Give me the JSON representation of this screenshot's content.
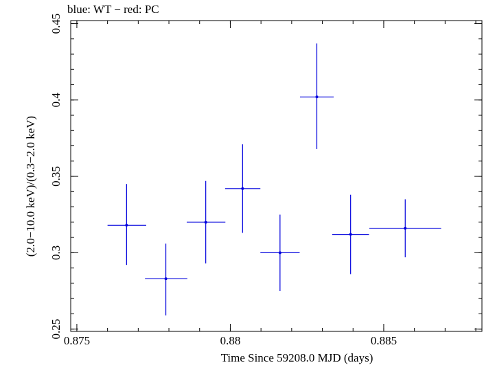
{
  "chart_data": {
    "type": "scatter",
    "title": "blue: WT − red: PC",
    "xlabel": "Time Since 59208.0 MJD (days)",
    "ylabel": "(2.0−10.0 keV)/(0.3−2.0 keV)",
    "xlim": [
      0.8748,
      0.8882
    ],
    "ylim": [
      0.2485,
      0.452
    ],
    "x_ticks": [
      0.875,
      0.88,
      0.885
    ],
    "x_tick_labels": [
      "0.875",
      "0.88",
      "0.885"
    ],
    "y_ticks": [
      0.25,
      0.3,
      0.35,
      0.4,
      0.45
    ],
    "y_tick_labels": [
      "0.25",
      "0.3",
      "0.35",
      "0.4",
      "0.45"
    ],
    "grid": false,
    "series": [
      {
        "name": "WT",
        "color": "#0000dd",
        "points": [
          {
            "x": 0.87662,
            "y": 0.318,
            "xerr_lo": 0.00062,
            "xerr_hi": 0.00064,
            "yerr_lo": 0.026,
            "yerr_hi": 0.027
          },
          {
            "x": 0.8779,
            "y": 0.283,
            "xerr_lo": 0.00068,
            "xerr_hi": 0.0007,
            "yerr_lo": 0.024,
            "yerr_hi": 0.023
          },
          {
            "x": 0.8792,
            "y": 0.32,
            "xerr_lo": 0.00062,
            "xerr_hi": 0.00064,
            "yerr_lo": 0.027,
            "yerr_hi": 0.027
          },
          {
            "x": 0.8804,
            "y": 0.342,
            "xerr_lo": 0.00057,
            "xerr_hi": 0.00058,
            "yerr_lo": 0.029,
            "yerr_hi": 0.029
          },
          {
            "x": 0.88162,
            "y": 0.3,
            "xerr_lo": 0.00064,
            "xerr_hi": 0.00064,
            "yerr_lo": 0.025,
            "yerr_hi": 0.025
          },
          {
            "x": 0.88282,
            "y": 0.402,
            "xerr_lo": 0.00055,
            "xerr_hi": 0.00055,
            "yerr_lo": 0.034,
            "yerr_hi": 0.035
          },
          {
            "x": 0.88392,
            "y": 0.312,
            "xerr_lo": 0.0006,
            "xerr_hi": 0.0006,
            "yerr_lo": 0.026,
            "yerr_hi": 0.026
          },
          {
            "x": 0.8857,
            "y": 0.316,
            "xerr_lo": 0.00117,
            "xerr_hi": 0.00117,
            "yerr_lo": 0.019,
            "yerr_hi": 0.019
          }
        ]
      }
    ]
  }
}
